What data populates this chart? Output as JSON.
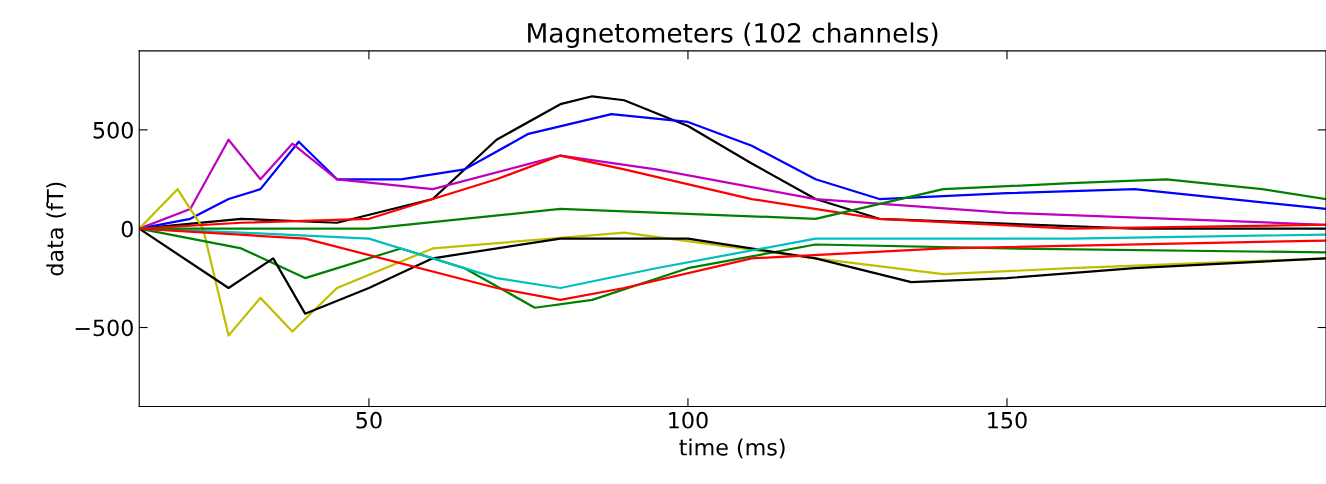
{
  "chart_data": {
    "type": "line",
    "title": "Magnetometers (102 channels)",
    "xlabel": "time (ms)",
    "ylabel": "data (fT)",
    "xlim": [
      14,
      200
    ],
    "ylim": [
      -900,
      900
    ],
    "xticks": [
      50,
      100,
      150
    ],
    "yticks": [
      {
        "value": 500,
        "label": "500"
      },
      {
        "value": 0,
        "label": "0"
      },
      {
        "value": -500,
        "label": "−500"
      }
    ],
    "grid": false,
    "legend": false,
    "line_style": "solid",
    "marker": "none",
    "series": [
      {
        "color": "#000000",
        "x": [
          14,
          30,
          45,
          60,
          70,
          80,
          85,
          90,
          100,
          110,
          120,
          130,
          170,
          200
        ],
        "values": [
          0,
          50,
          30,
          150,
          450,
          630,
          670,
          650,
          520,
          330,
          150,
          50,
          0,
          0
        ]
      },
      {
        "color": "#0000ff",
        "x": [
          14,
          22,
          28,
          33,
          39,
          45,
          55,
          65,
          75,
          88,
          100,
          110,
          120,
          130,
          150,
          170,
          200
        ],
        "values": [
          0,
          50,
          150,
          200,
          440,
          250,
          250,
          300,
          480,
          580,
          540,
          420,
          250,
          150,
          180,
          200,
          100
        ]
      },
      {
        "color": "#bf00bf",
        "x": [
          14,
          22,
          28,
          33,
          38,
          45,
          60,
          80,
          95,
          120,
          150,
          200
        ],
        "values": [
          0,
          100,
          450,
          250,
          430,
          250,
          200,
          370,
          300,
          150,
          80,
          20
        ]
      },
      {
        "color": "#bfbf00",
        "x": [
          14,
          20,
          24,
          28,
          33,
          38,
          45,
          60,
          90,
          120,
          140,
          160,
          200
        ],
        "values": [
          0,
          200,
          0,
          -540,
          -350,
          -520,
          -300,
          -100,
          -20,
          -150,
          -230,
          -200,
          -150
        ]
      },
      {
        "color": "#008000",
        "x": [
          14,
          30,
          40,
          55,
          65,
          76,
          85,
          100,
          120,
          150,
          200
        ],
        "values": [
          0,
          -100,
          -250,
          -100,
          -200,
          -400,
          -360,
          -200,
          -80,
          -100,
          -120
        ]
      },
      {
        "color": "#000000",
        "x": [
          14,
          28,
          35,
          40,
          50,
          60,
          80,
          100,
          120,
          135,
          150,
          170,
          200
        ],
        "values": [
          0,
          -300,
          -150,
          -430,
          -300,
          -150,
          -50,
          -50,
          -150,
          -270,
          -250,
          -200,
          -150
        ]
      },
      {
        "color": "#ff0000",
        "x": [
          14,
          30,
          50,
          70,
          80,
          90,
          110,
          130,
          160,
          200
        ],
        "values": [
          0,
          30,
          50,
          250,
          370,
          300,
          150,
          50,
          0,
          20
        ]
      },
      {
        "color": "#00bfbf",
        "x": [
          14,
          30,
          50,
          70,
          80,
          95,
          120,
          160,
          200
        ],
        "values": [
          0,
          -20,
          -50,
          -250,
          -300,
          -200,
          -50,
          -50,
          -30
        ]
      },
      {
        "color": "#008000",
        "x": [
          14,
          50,
          80,
          120,
          140,
          160,
          175,
          190,
          200
        ],
        "values": [
          0,
          0,
          100,
          50,
          200,
          230,
          250,
          200,
          150
        ]
      },
      {
        "color": "#ff0000",
        "x": [
          14,
          40,
          70,
          80,
          90,
          110,
          140,
          200
        ],
        "values": [
          0,
          -50,
          -300,
          -360,
          -300,
          -150,
          -100,
          -60
        ]
      }
    ]
  }
}
